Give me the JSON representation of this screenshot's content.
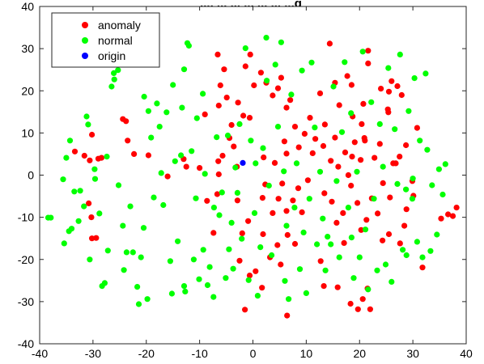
{
  "chart_data": {
    "type": "scatter",
    "title": "..., ... ... ... ... ... ...g",
    "xlabel": "",
    "ylabel": "",
    "xlim": [
      -40,
      40
    ],
    "ylim": [
      -40,
      40
    ],
    "xticks": [
      -40,
      -30,
      -20,
      -10,
      0,
      10,
      20,
      30,
      40
    ],
    "yticks": [
      -40,
      -30,
      -20,
      -10,
      0,
      10,
      20,
      30,
      40
    ],
    "grid": false,
    "legend_position": "top-left",
    "series": [
      {
        "name": "anomaly",
        "color": "#ff0000",
        "points": [
          [
            -33.4,
            5.6
          ],
          [
            -31.6,
            4.6
          ],
          [
            -30.2,
            9.6
          ],
          [
            -29.0,
            3.9
          ],
          [
            -30.6,
            3.5
          ],
          [
            -28.4,
            4.1
          ],
          [
            -30.8,
            -6.7
          ],
          [
            -30.2,
            -15.0
          ],
          [
            -29.4,
            -14.9
          ],
          [
            -30.3,
            -10.0
          ],
          [
            -24.4,
            13.3
          ],
          [
            -23.8,
            12.8
          ],
          [
            -23.5,
            8.2
          ],
          [
            -22.3,
            5.0
          ],
          [
            -19.6,
            4.7
          ],
          [
            -16.0,
            -0.3
          ],
          [
            -13.0,
            3.8
          ],
          [
            -12.5,
            2.0
          ],
          [
            -10.0,
            1.7
          ],
          [
            -9.0,
            14.4
          ],
          [
            -6.5,
            3.3
          ],
          [
            -6.4,
            0.2
          ],
          [
            -6.7,
            -4.5
          ],
          [
            -5.7,
            4.6
          ],
          [
            -4.4,
            8.8
          ],
          [
            -4.0,
            11.9
          ],
          [
            -3.6,
            6.8
          ],
          [
            -3.0,
            2.0
          ],
          [
            -6.6,
            28.6
          ],
          [
            -5.4,
            25.1
          ],
          [
            -6.1,
            21.3
          ],
          [
            -6.4,
            16.5
          ],
          [
            -4.9,
            18.4
          ],
          [
            -2.8,
            17.2
          ],
          [
            -1.8,
            14.1
          ],
          [
            -0.6,
            13.6
          ],
          [
            -1.4,
            25.8
          ],
          [
            -0.5,
            28.6
          ],
          [
            0.2,
            21.3
          ],
          [
            1.5,
            24.3
          ],
          [
            2.5,
            21.9
          ],
          [
            3.7,
            18.9
          ],
          [
            4.7,
            20.6
          ],
          [
            5.3,
            23.1
          ],
          [
            6.3,
            16.0
          ],
          [
            7.0,
            17.8
          ],
          [
            2.0,
            4.2
          ],
          [
            4.1,
            2.9
          ],
          [
            5.9,
            8.0
          ],
          [
            6.3,
            5.1
          ],
          [
            7.9,
            11.5
          ],
          [
            8.6,
            6.6
          ],
          [
            9.7,
            9.8
          ],
          [
            10.7,
            13.6
          ],
          [
            11.2,
            5.2
          ],
          [
            11.7,
            8.6
          ],
          [
            1.8,
            -5.4
          ],
          [
            2.3,
            -2.2
          ],
          [
            3.7,
            -9.0
          ],
          [
            4.8,
            -5.6
          ],
          [
            5.5,
            -2.0
          ],
          [
            6.3,
            -8.5
          ],
          [
            7.5,
            -6.0
          ],
          [
            8.5,
            -3.1
          ],
          [
            9.2,
            -8.8
          ],
          [
            10.3,
            -1.2
          ],
          [
            -2.9,
            -6.0
          ],
          [
            -2.0,
            -13.8
          ],
          [
            -0.9,
            -10.9
          ],
          [
            1.9,
            -14.0
          ],
          [
            3.2,
            -19.5
          ],
          [
            4.6,
            -16.6
          ],
          [
            5.2,
            -21.2
          ],
          [
            6.5,
            -14.2
          ],
          [
            7.9,
            -16.3
          ],
          [
            -8.6,
            -6.1
          ],
          [
            -7.4,
            -13.7
          ],
          [
            -2.5,
            -20.3
          ],
          [
            -0.6,
            -23.8
          ],
          [
            0.5,
            -22.8
          ],
          [
            1.7,
            -26.7
          ],
          [
            -1.5,
            -31.9
          ],
          [
            6.4,
            -33.3
          ],
          [
            12.6,
            19.4
          ],
          [
            13.5,
            12.0
          ],
          [
            14.4,
            31.2
          ],
          [
            15.4,
            21.9
          ],
          [
            16.2,
            16.6
          ],
          [
            17.7,
            23.5
          ],
          [
            18.7,
            13.9
          ],
          [
            20.4,
            12.1
          ],
          [
            20.9,
            8.8
          ],
          [
            21.6,
            26.5
          ],
          [
            21.6,
            29.5
          ],
          [
            24.0,
            20.5
          ],
          [
            25.5,
            19.8
          ],
          [
            25.3,
            15.6
          ],
          [
            26.0,
            22.3
          ],
          [
            25.4,
            14.9
          ],
          [
            27.1,
            21.1
          ],
          [
            27.9,
            19.0
          ],
          [
            13.2,
            6.9
          ],
          [
            14.6,
            3.4
          ],
          [
            15.4,
            8.9
          ],
          [
            16.0,
            2.0
          ],
          [
            17.3,
            5.4
          ],
          [
            17.9,
            0.0
          ],
          [
            18.6,
            4.4
          ],
          [
            19.1,
            7.8
          ],
          [
            20.2,
            3.6
          ],
          [
            21.0,
            8.2
          ],
          [
            22.8,
            4.1
          ],
          [
            23.8,
            7.4
          ],
          [
            24.4,
            -1.9
          ],
          [
            26.3,
            2.8
          ],
          [
            25.7,
            -5.3
          ],
          [
            26.8,
            2.8
          ],
          [
            27.5,
            4.4
          ],
          [
            28.7,
            7.1
          ],
          [
            29.9,
            -1.4
          ],
          [
            30.1,
            -4.9
          ],
          [
            13.4,
            -4.3
          ],
          [
            14.8,
            -6.3
          ],
          [
            15.7,
            -11.3
          ],
          [
            16.9,
            -9.0
          ],
          [
            17.1,
            -16.1
          ],
          [
            18.4,
            -2.5
          ],
          [
            19.6,
            -6.6
          ],
          [
            20.3,
            -13.0
          ],
          [
            21.3,
            -10.6
          ],
          [
            22.3,
            -5.5
          ],
          [
            23.4,
            -9.1
          ],
          [
            24.3,
            -15.5
          ],
          [
            25.5,
            -14.0
          ],
          [
            27.6,
            -16.2
          ],
          [
            28.4,
            -12.0
          ],
          [
            28.8,
            -8.1
          ],
          [
            12.7,
            -20.4
          ],
          [
            13.3,
            -26.3
          ],
          [
            15.9,
            -26.6
          ],
          [
            18.3,
            -30.5
          ],
          [
            19.7,
            -31.8
          ],
          [
            20.6,
            -29.4
          ],
          [
            21.5,
            -26.9
          ],
          [
            22.0,
            -31.8
          ],
          [
            35.3,
            -10.3
          ],
          [
            36.6,
            -9.3
          ],
          [
            37.5,
            -9.7
          ],
          [
            38.2,
            -7.7
          ],
          [
            31.8,
            -21.9
          ],
          [
            30.8,
            11.2
          ],
          [
            20.7,
            16.9
          ],
          [
            18.5,
            21.4
          ]
        ]
      },
      {
        "name": "normal",
        "color": "#00ff00",
        "points": [
          [
            -38.4,
            -10.1
          ],
          [
            -37.9,
            -10.1
          ],
          [
            -35.4,
            -16.2
          ],
          [
            -35.0,
            4.1
          ],
          [
            -34.5,
            -13.3
          ],
          [
            -34.0,
            -12.7
          ],
          [
            -34.3,
            8.2
          ],
          [
            -35.6,
            -1.0
          ],
          [
            -33.5,
            -3.9
          ],
          [
            -32.4,
            -3.7
          ],
          [
            -32.7,
            -10.9
          ],
          [
            -31.7,
            -7.4
          ],
          [
            -31.2,
            13.9
          ],
          [
            -30.9,
            12.0
          ],
          [
            -30.6,
            -20.0
          ],
          [
            -29.7,
            1.4
          ],
          [
            -29.6,
            -0.9
          ],
          [
            -28.8,
            -9.1
          ],
          [
            -28.3,
            -26.3
          ],
          [
            -27.8,
            -25.6
          ],
          [
            -27.4,
            4.4
          ],
          [
            -27.2,
            -17.9
          ],
          [
            -26.5,
            21.0
          ],
          [
            -26.1,
            24.2
          ],
          [
            -26.0,
            22.7
          ],
          [
            -25.3,
            24.9
          ],
          [
            -25.2,
            -2.4
          ],
          [
            -24.4,
            -12.0
          ],
          [
            -24.2,
            -22.5
          ],
          [
            -23.7,
            -18.3
          ],
          [
            -23.0,
            -7.4
          ],
          [
            -22.5,
            -18.3
          ],
          [
            -21.7,
            -26.5
          ],
          [
            -21.4,
            -30.6
          ],
          [
            -21.0,
            -19.5
          ],
          [
            -20.5,
            -12.5
          ],
          [
            -20.4,
            18.6
          ],
          [
            -19.8,
            -29.4
          ],
          [
            -19.6,
            15.2
          ],
          [
            -19.1,
            8.9
          ],
          [
            -18.6,
            -5.3
          ],
          [
            -18.0,
            17.0
          ],
          [
            -17.5,
            11.5
          ],
          [
            -17.2,
            0.5
          ],
          [
            -16.8,
            -7.1
          ],
          [
            -16.2,
            14.9
          ],
          [
            -15.5,
            -20.4
          ],
          [
            -15.2,
            -28.1
          ],
          [
            -14.6,
            3.3
          ],
          [
            -14.1,
            -15.7
          ],
          [
            -13.5,
            4.7
          ],
          [
            -12.9,
            -26.3
          ],
          [
            -12.7,
            -27.6
          ],
          [
            -12.3,
            31.3
          ],
          [
            -12.0,
            30.7
          ],
          [
            -11.5,
            5.7
          ],
          [
            -11.1,
            -20.0
          ],
          [
            -10.7,
            -5.5
          ],
          [
            -10.5,
            13.5
          ],
          [
            -10.1,
            -24.7
          ],
          [
            -9.3,
            -17.7
          ],
          [
            -9.0,
            0.3
          ],
          [
            -8.5,
            -26.1
          ],
          [
            -8.1,
            -21.8
          ],
          [
            -7.4,
            -28.9
          ],
          [
            -7.3,
            -7.7
          ],
          [
            -6.8,
            9.0
          ],
          [
            -6.3,
            -9.5
          ],
          [
            -5.8,
            -4.1
          ],
          [
            -5.1,
            -24.4
          ],
          [
            -4.5,
            -17.6
          ],
          [
            -4.0,
            -11.3
          ],
          [
            -3.7,
            -22.2
          ],
          [
            -3.3,
            1.8
          ],
          [
            -2.9,
            -4.2
          ],
          [
            -2.5,
            12.1
          ],
          [
            -2.1,
            -15.1
          ],
          [
            -1.4,
            30.1
          ],
          [
            -0.8,
            -24.9
          ],
          [
            -0.4,
            8.2
          ],
          [
            0.3,
            -9.0
          ],
          [
            0.9,
            -28.6
          ],
          [
            1.4,
            -17.1
          ],
          [
            1.9,
            6.4
          ],
          [
            2.5,
            32.6
          ],
          [
            3.0,
            -2.5
          ],
          [
            3.5,
            -19.0
          ],
          [
            4.2,
            26.2
          ],
          [
            4.7,
            11.5
          ],
          [
            5.3,
            31.5
          ],
          [
            5.8,
            0.9
          ],
          [
            6.3,
            -12.0
          ],
          [
            6.7,
            -29.4
          ],
          [
            7.2,
            19.1
          ],
          [
            7.8,
            -7.7
          ],
          [
            8.2,
            2.8
          ],
          [
            8.8,
            -22.3
          ],
          [
            9.5,
            -13.6
          ],
          [
            10.0,
            -28.0
          ],
          [
            10.6,
            -5.6
          ],
          [
            11.0,
            26.7
          ],
          [
            11.6,
            11.3
          ],
          [
            12.0,
            -16.4
          ],
          [
            12.6,
            0.8
          ],
          [
            13.1,
            -10.3
          ],
          [
            13.6,
            -22.6
          ],
          [
            14.0,
            -14.6
          ],
          [
            14.6,
            -16.4
          ],
          [
            15.1,
            21.0
          ],
          [
            15.7,
            -1.4
          ],
          [
            16.2,
            -19.5
          ],
          [
            16.7,
            10.2
          ],
          [
            17.2,
            26.8
          ],
          [
            17.9,
            -7.7
          ],
          [
            18.4,
            14.7
          ],
          [
            18.9,
            -24.4
          ],
          [
            19.5,
            0.8
          ],
          [
            20.0,
            -19.5
          ],
          [
            20.6,
            29.3
          ],
          [
            21.1,
            -12.9
          ],
          [
            21.6,
            -27.1
          ],
          [
            22.2,
            17.3
          ],
          [
            22.7,
            -5.6
          ],
          [
            23.3,
            -22.6
          ],
          [
            23.8,
            12.1
          ],
          [
            24.4,
            2.0
          ],
          [
            24.9,
            -21.2
          ],
          [
            25.4,
            25.4
          ],
          [
            26.0,
            -25.3
          ],
          [
            26.6,
            10.9
          ],
          [
            27.1,
            -2.1
          ],
          [
            27.6,
            28.6
          ],
          [
            28.1,
            -17.7
          ],
          [
            28.7,
            -3.4
          ],
          [
            29.2,
            15.2
          ],
          [
            29.9,
            -5.6
          ],
          [
            30.3,
            23.0
          ],
          [
            30.8,
            -15.8
          ],
          [
            31.3,
            8.2
          ],
          [
            31.8,
            -19.5
          ],
          [
            32.4,
            24.1
          ],
          [
            32.7,
            6.0
          ],
          [
            33.3,
            -18.0
          ],
          [
            33.6,
            -2.4
          ],
          [
            34.5,
            -14.1
          ],
          [
            34.9,
            1.4
          ],
          [
            35.6,
            -4.6
          ],
          [
            36.1,
            2.6
          ],
          [
            30.0,
            -0.8
          ],
          [
            28.8,
            -19.0
          ],
          [
            18.5,
            -14.8
          ],
          [
            2.6,
            22.4
          ],
          [
            -9.4,
            19.3
          ],
          [
            -12.9,
            25.1
          ],
          [
            -13.3,
            16.0
          ],
          [
            6.0,
            -25.1
          ],
          [
            -15.0,
            21.4
          ],
          [
            -4.7,
            9.4
          ],
          [
            0.5,
            2.8
          ],
          [
            9.2,
            24.8
          ]
        ]
      },
      {
        "name": "origin",
        "color": "#0000ff",
        "points": [
          [
            -1.9,
            2.9
          ]
        ]
      }
    ]
  }
}
